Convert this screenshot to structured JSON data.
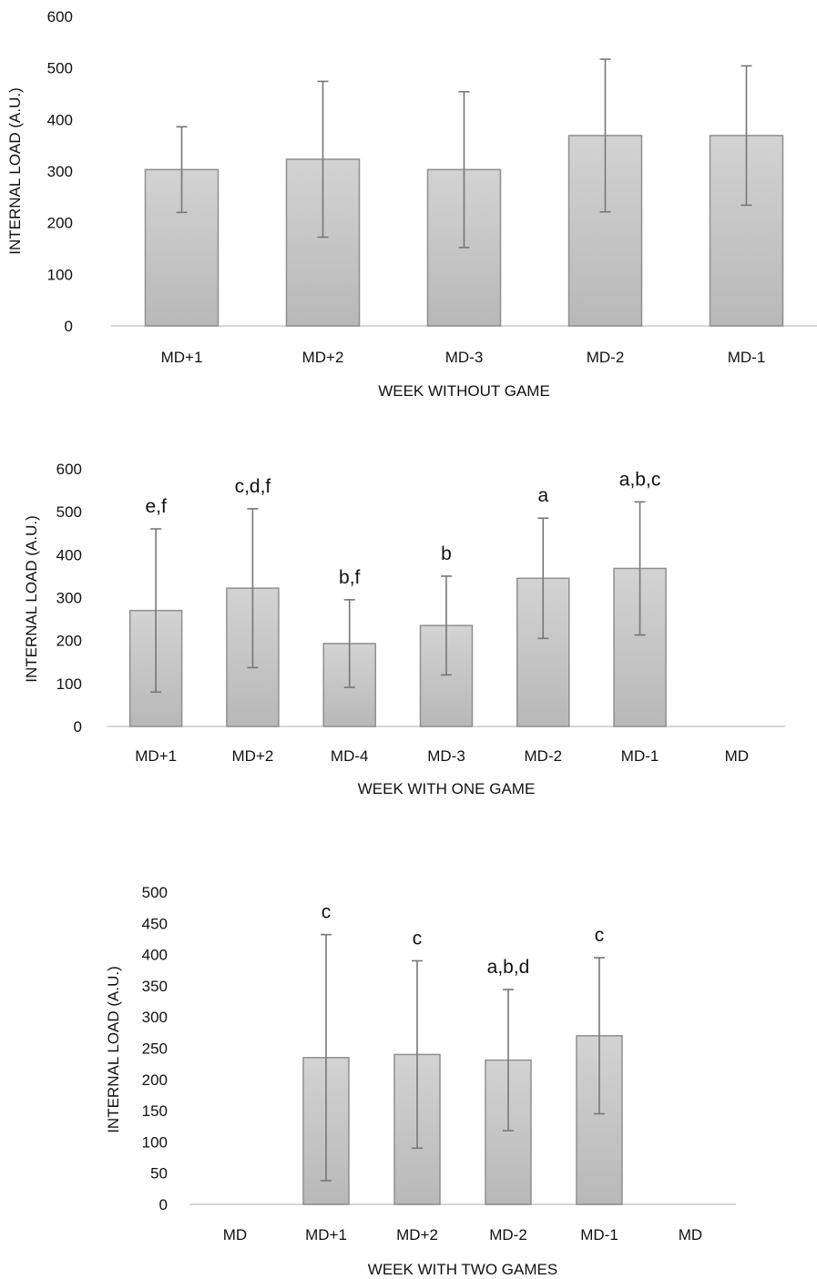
{
  "chart_data": [
    {
      "type": "bar",
      "xlabel": "WEEK WITHOUT GAME",
      "ylabel": "INTERNAL LOAD (A.U.)",
      "ylim": [
        0,
        600
      ],
      "yticks": [
        0,
        100,
        200,
        300,
        400,
        500,
        600
      ],
      "categories": [
        "MD+1",
        "MD+2",
        "MD-3",
        "MD-2",
        "MD-1"
      ],
      "values": [
        303,
        323,
        303,
        369,
        369
      ],
      "error": [
        83,
        151,
        151,
        148,
        135
      ],
      "annotations": [
        "",
        "",
        "",
        "",
        ""
      ],
      "bar_color": "#c9c9c9"
    },
    {
      "type": "bar",
      "xlabel": "WEEK WITH ONE GAME",
      "ylabel": "INTERNAL LOAD (A.U.)",
      "ylim": [
        0,
        600
      ],
      "yticks": [
        0,
        100,
        200,
        300,
        400,
        500,
        600
      ],
      "categories": [
        "MD+1",
        "MD+2",
        "MD-4",
        "MD-3",
        "MD-2",
        "MD-1",
        "MD"
      ],
      "values": [
        270,
        322,
        193,
        235,
        345,
        368,
        null
      ],
      "error": [
        190,
        185,
        102,
        115,
        140,
        155,
        null
      ],
      "annotations": [
        "e,f",
        "c,d,f",
        "b,f",
        "b",
        "a",
        "a,b,c",
        ""
      ],
      "bar_color": "#c9c9c9"
    },
    {
      "type": "bar",
      "xlabel": "WEEK WITH TWO GAMES",
      "ylabel": "INTERNAL LOAD (A.U.)",
      "ylim": [
        0,
        500
      ],
      "yticks": [
        0,
        50,
        100,
        150,
        200,
        250,
        300,
        350,
        400,
        450,
        500
      ],
      "categories": [
        "MD",
        "MD+1",
        "MD+2",
        "MD-2",
        "MD-1",
        "MD"
      ],
      "values": [
        null,
        235,
        240,
        231,
        270,
        null
      ],
      "error": [
        null,
        197,
        150,
        113,
        125,
        null
      ],
      "annotations": [
        "",
        "c",
        "c",
        "a,b,d",
        "c",
        ""
      ],
      "bar_color": "#c9c9c9"
    }
  ]
}
